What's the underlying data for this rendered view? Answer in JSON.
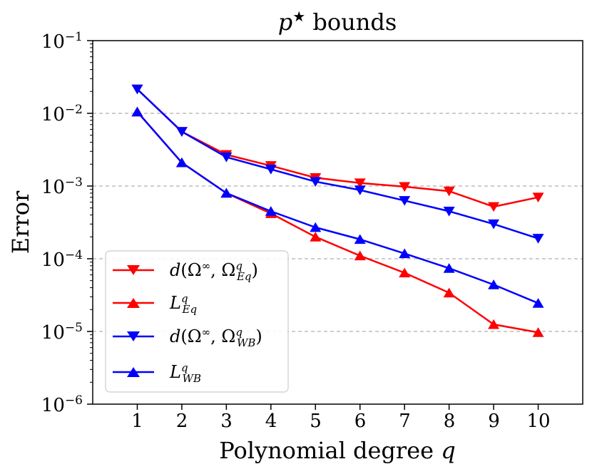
{
  "chart_data": {
    "type": "line",
    "title": "p★ bounds",
    "title_parts": {
      "var": "p",
      "star": "★",
      "rest": " bounds"
    },
    "xlabel": "Polynomial degree q",
    "xlabel_parts": {
      "text": "Polynomial degree ",
      "var": "q"
    },
    "ylabel": "Error",
    "yscale": "log",
    "ylim": [
      1e-06,
      0.1
    ],
    "xlim": [
      0,
      11
    ],
    "x": [
      1,
      2,
      3,
      4,
      5,
      6,
      7,
      8,
      9,
      10
    ],
    "x_tick_labels": [
      "1",
      "2",
      "3",
      "4",
      "5",
      "6",
      "7",
      "8",
      "9",
      "10"
    ],
    "y_ticks": [
      1e-06,
      1e-05,
      0.0001,
      0.001,
      0.01,
      0.1
    ],
    "y_tick_labels": [
      {
        "base": "10",
        "exp": "−6"
      },
      {
        "base": "10",
        "exp": "−5"
      },
      {
        "base": "10",
        "exp": "−4"
      },
      {
        "base": "10",
        "exp": "−3"
      },
      {
        "base": "10",
        "exp": "−2"
      },
      {
        "base": "10",
        "exp": "−1"
      }
    ],
    "grid": "horizontal-dashed",
    "legend_position": "lower-left",
    "series": [
      {
        "name": "d(Ω∞, Ω^q_Eq)",
        "color": "#ff0000",
        "marker": "triangle-down",
        "legend": {
          "pre": "d",
          "open": "(",
          "omega": "Ω",
          "inf": "∞",
          "comma": ", ",
          "omega2": "Ω",
          "sup": "q",
          "sub": "Eq",
          "close": ")"
        },
        "values": [
          0.0215,
          0.0056,
          0.0027,
          0.0019,
          0.0013,
          0.0011,
          0.00098,
          0.00085,
          0.00052,
          0.0007
        ]
      },
      {
        "name": "L^q_Eq",
        "color": "#ff0000",
        "marker": "triangle-up",
        "legend": {
          "pre": "L",
          "sup": "q",
          "sub": "Eq"
        },
        "values": [
          0.0105,
          0.0021,
          0.0008,
          0.00042,
          0.0002,
          0.00011,
          6.4e-05,
          3.4e-05,
          1.25e-05,
          9.7e-06
        ]
      },
      {
        "name": "d(Ω∞, Ω^q_WB)",
        "color": "#0000ff",
        "marker": "triangle-down",
        "legend": {
          "pre": "d",
          "open": "(",
          "omega": "Ω",
          "inf": "∞",
          "comma": ", ",
          "omega2": "Ω",
          "sup": "q",
          "sub": "WB",
          "close": ")"
        },
        "values": [
          0.0215,
          0.0056,
          0.0025,
          0.0017,
          0.00115,
          0.00088,
          0.00063,
          0.00045,
          0.0003,
          0.00019
        ]
      },
      {
        "name": "L^q_WB",
        "color": "#0000ff",
        "marker": "triangle-up",
        "legend": {
          "pre": "L",
          "sup": "q",
          "sub": "WB"
        },
        "values": [
          0.0105,
          0.0021,
          0.0008,
          0.00045,
          0.00027,
          0.000185,
          0.000118,
          7.4e-05,
          4.4e-05,
          2.45e-05
        ]
      }
    ]
  }
}
